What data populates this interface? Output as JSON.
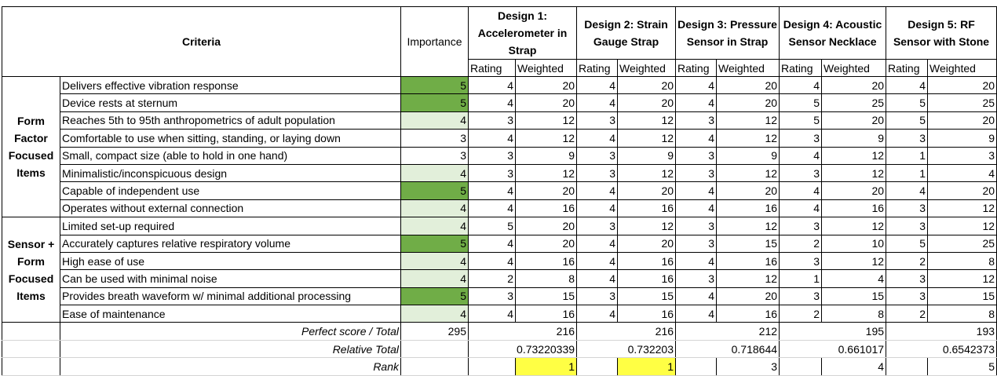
{
  "header": {
    "criteria": "Criteria",
    "importance": "Importance",
    "rating": "Rating",
    "weighted": "Weighted"
  },
  "designs": [
    "Design 1: Accelerometer in Strap",
    "Design 2: Strain Gauge Strap",
    "Design 3: Pressure Sensor in Strap",
    "Design 4: Acoustic Sensor Necklace",
    "Design 5: RF Sensor with Stone"
  ],
  "groups": [
    {
      "label": "Form Factor Focused Items",
      "rows": [
        {
          "criterion": "Delivers effective vibration response",
          "importance": 5,
          "scores": [
            [
              4,
              20
            ],
            [
              4,
              20
            ],
            [
              4,
              20
            ],
            [
              4,
              20
            ],
            [
              4,
              20
            ]
          ]
        },
        {
          "criterion": "Device rests at sternum",
          "importance": 5,
          "scores": [
            [
              4,
              20
            ],
            [
              4,
              20
            ],
            [
              4,
              20
            ],
            [
              5,
              25
            ],
            [
              5,
              25
            ]
          ]
        },
        {
          "criterion": "Reaches 5th to 95th anthropometrics of adult population",
          "importance": 4,
          "scores": [
            [
              3,
              12
            ],
            [
              3,
              12
            ],
            [
              3,
              12
            ],
            [
              5,
              20
            ],
            [
              5,
              20
            ]
          ]
        },
        {
          "criterion": "Comfortable to use when sitting, standing, or laying down",
          "importance": 3,
          "scores": [
            [
              4,
              12
            ],
            [
              4,
              12
            ],
            [
              4,
              12
            ],
            [
              3,
              9
            ],
            [
              3,
              9
            ]
          ]
        },
        {
          "criterion": "Small, compact size (able to hold in one hand)",
          "importance": 3,
          "scores": [
            [
              3,
              9
            ],
            [
              3,
              9
            ],
            [
              3,
              9
            ],
            [
              4,
              12
            ],
            [
              1,
              3
            ]
          ]
        },
        {
          "criterion": "Minimalistic/inconspicuous design",
          "importance": 4,
          "scores": [
            [
              3,
              12
            ],
            [
              3,
              12
            ],
            [
              3,
              12
            ],
            [
              3,
              12
            ],
            [
              1,
              4
            ]
          ]
        },
        {
          "criterion": "Capable of independent use",
          "importance": 5,
          "scores": [
            [
              4,
              20
            ],
            [
              4,
              20
            ],
            [
              4,
              20
            ],
            [
              4,
              20
            ],
            [
              4,
              20
            ]
          ]
        },
        {
          "criterion": "Operates without external connection",
          "importance": 4,
          "scores": [
            [
              4,
              16
            ],
            [
              4,
              16
            ],
            [
              4,
              16
            ],
            [
              4,
              16
            ],
            [
              3,
              12
            ]
          ]
        }
      ]
    },
    {
      "label": "Sensor + Form Focused Items",
      "rows": [
        {
          "criterion": "Limited set-up required",
          "importance": 4,
          "scores": [
            [
              5,
              20
            ],
            [
              3,
              12
            ],
            [
              3,
              12
            ],
            [
              3,
              12
            ],
            [
              3,
              12
            ]
          ]
        },
        {
          "criterion": "Accurately captures relative respiratory volume",
          "importance": 5,
          "scores": [
            [
              4,
              20
            ],
            [
              4,
              20
            ],
            [
              3,
              15
            ],
            [
              2,
              10
            ],
            [
              5,
              25
            ]
          ]
        },
        {
          "criterion": "High ease of use",
          "importance": 4,
          "scores": [
            [
              4,
              16
            ],
            [
              4,
              16
            ],
            [
              4,
              16
            ],
            [
              3,
              12
            ],
            [
              2,
              8
            ]
          ]
        },
        {
          "criterion": "Can be used with minimal noise",
          "importance": 4,
          "scores": [
            [
              2,
              8
            ],
            [
              4,
              16
            ],
            [
              3,
              12
            ],
            [
              1,
              4
            ],
            [
              3,
              12
            ]
          ]
        },
        {
          "criterion": "Provides breath waveform w/ minimal additional processing",
          "importance": 5,
          "scores": [
            [
              3,
              15
            ],
            [
              3,
              15
            ],
            [
              4,
              20
            ],
            [
              3,
              15
            ],
            [
              3,
              15
            ]
          ]
        },
        {
          "criterion": "Ease of maintenance",
          "importance": 4,
          "scores": [
            [
              4,
              16
            ],
            [
              4,
              16
            ],
            [
              4,
              16
            ],
            [
              2,
              8
            ],
            [
              2,
              8
            ]
          ]
        }
      ]
    }
  ],
  "summary": {
    "perfect_label": "Perfect score / Total",
    "perfect": 295,
    "totals": [
      216,
      216,
      212,
      195,
      193
    ],
    "relative_label": "Relative Total",
    "relative": [
      "0.73220339",
      "0.732203",
      "0.718644",
      "0.661017",
      "0.6542373"
    ],
    "rank_label": "Rank",
    "ranks": [
      1,
      1,
      3,
      4,
      5
    ]
  },
  "colors": {
    "importance5": "#70AD47",
    "importance4": "#E2EFDA",
    "rank_highlight": "#FFFF44"
  }
}
